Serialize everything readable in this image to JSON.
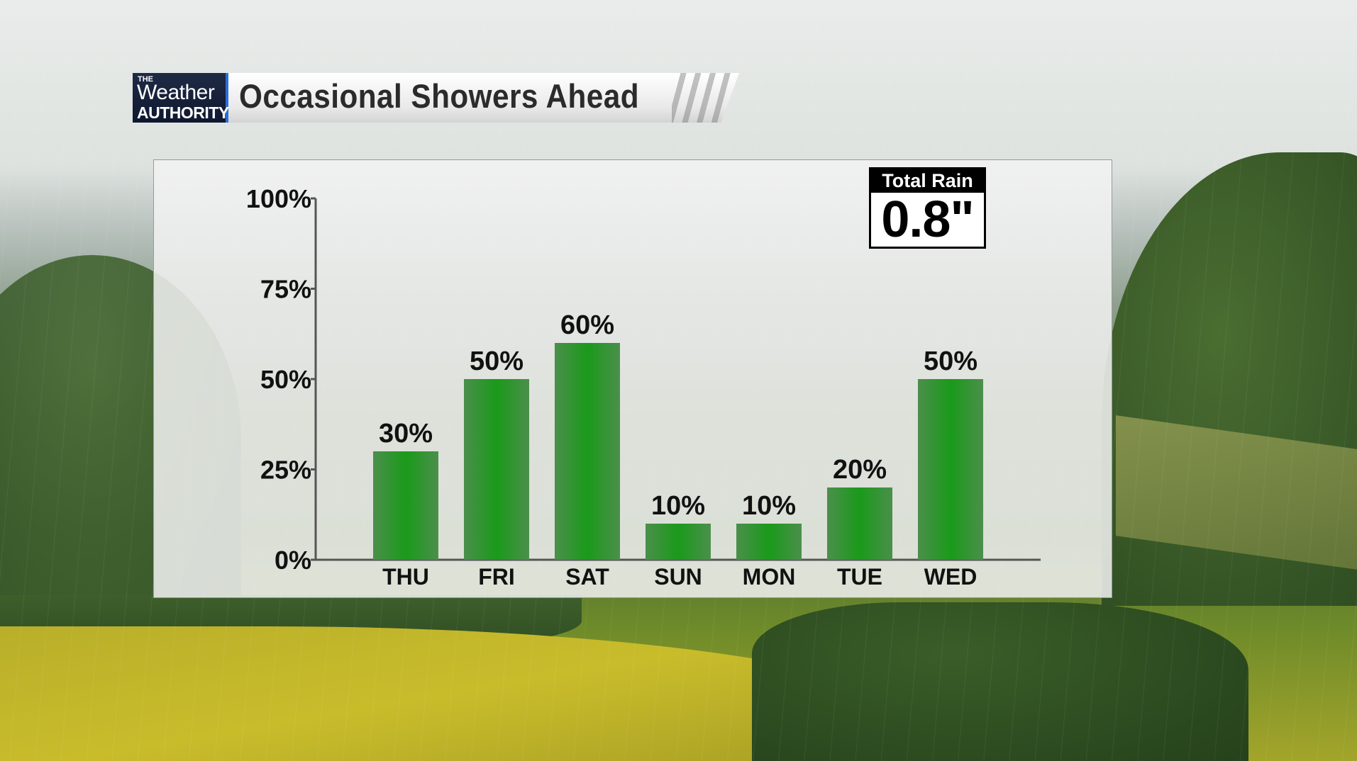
{
  "header": {
    "logo": {
      "the": "THE",
      "weather": "Weather",
      "authority": "AUTHORITY"
    },
    "title": "Occasional Showers Ahead"
  },
  "total_rain": {
    "label": "Total Rain",
    "value": "0.8\""
  },
  "colors": {
    "bar": "#1a9a1a",
    "axis": "#555555",
    "text": "#111111"
  },
  "chart_data": {
    "type": "bar",
    "categories": [
      "THU",
      "FRI",
      "SAT",
      "SUN",
      "MON",
      "TUE",
      "WED"
    ],
    "values": [
      30,
      50,
      60,
      10,
      10,
      20,
      50
    ],
    "value_labels": [
      "30%",
      "50%",
      "60%",
      "10%",
      "10%",
      "20%",
      "50%"
    ],
    "yticks": [
      0,
      25,
      50,
      75,
      100
    ],
    "ytick_labels": [
      "0%",
      "25%",
      "50%",
      "75%",
      "100%"
    ],
    "ylim": [
      0,
      100
    ],
    "title": "Occasional Showers Ahead",
    "xlabel": "",
    "ylabel": "",
    "grid": false,
    "legend": false
  }
}
